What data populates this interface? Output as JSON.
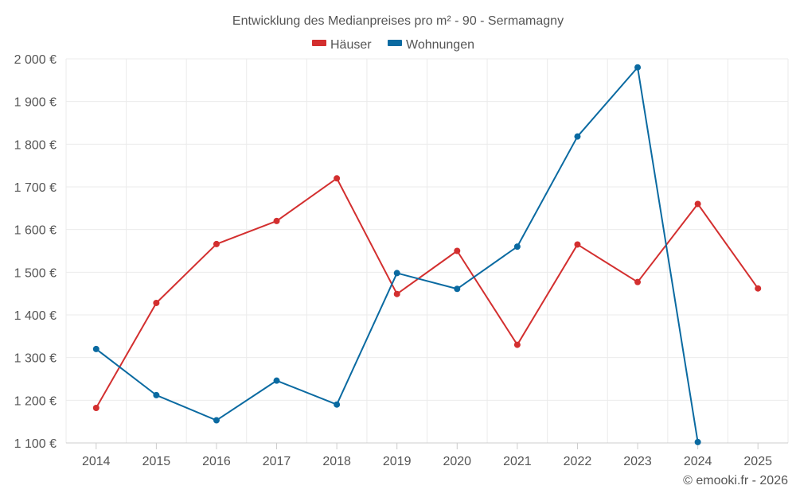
{
  "chart_data": {
    "type": "line",
    "title": "Entwicklung des Medianpreises pro m² - 90 - Sermamagny",
    "categories": [
      "2014",
      "2015",
      "2016",
      "2017",
      "2018",
      "2019",
      "2020",
      "2021",
      "2022",
      "2023",
      "2024",
      "2025"
    ],
    "series": [
      {
        "name": "Häuser",
        "color": "#d32f2f",
        "values": [
          1182,
          1428,
          1566,
          1620,
          1720,
          1449,
          1550,
          1330,
          1565,
          1477,
          1660,
          1462
        ]
      },
      {
        "name": "Wohnungen",
        "color": "#0a6aa1",
        "values": [
          1320,
          1212,
          1153,
          1246,
          1190,
          1498,
          1461,
          1560,
          1818,
          1980,
          1102,
          null
        ]
      }
    ],
    "ylim": [
      1100,
      2000
    ],
    "yticks": [
      1100,
      1200,
      1300,
      1400,
      1500,
      1600,
      1700,
      1800,
      1900,
      2000
    ],
    "ytick_labels": [
      "1 100 €",
      "1 200 €",
      "1 300 €",
      "1 400 €",
      "1 500 €",
      "1 600 €",
      "1 700 €",
      "1 800 €",
      "1 900 €",
      "2 000 €"
    ],
    "xlabel": "",
    "ylabel": "",
    "grid": true,
    "legend_position": "top-center"
  },
  "credit": "© emooki.fr - 2026"
}
